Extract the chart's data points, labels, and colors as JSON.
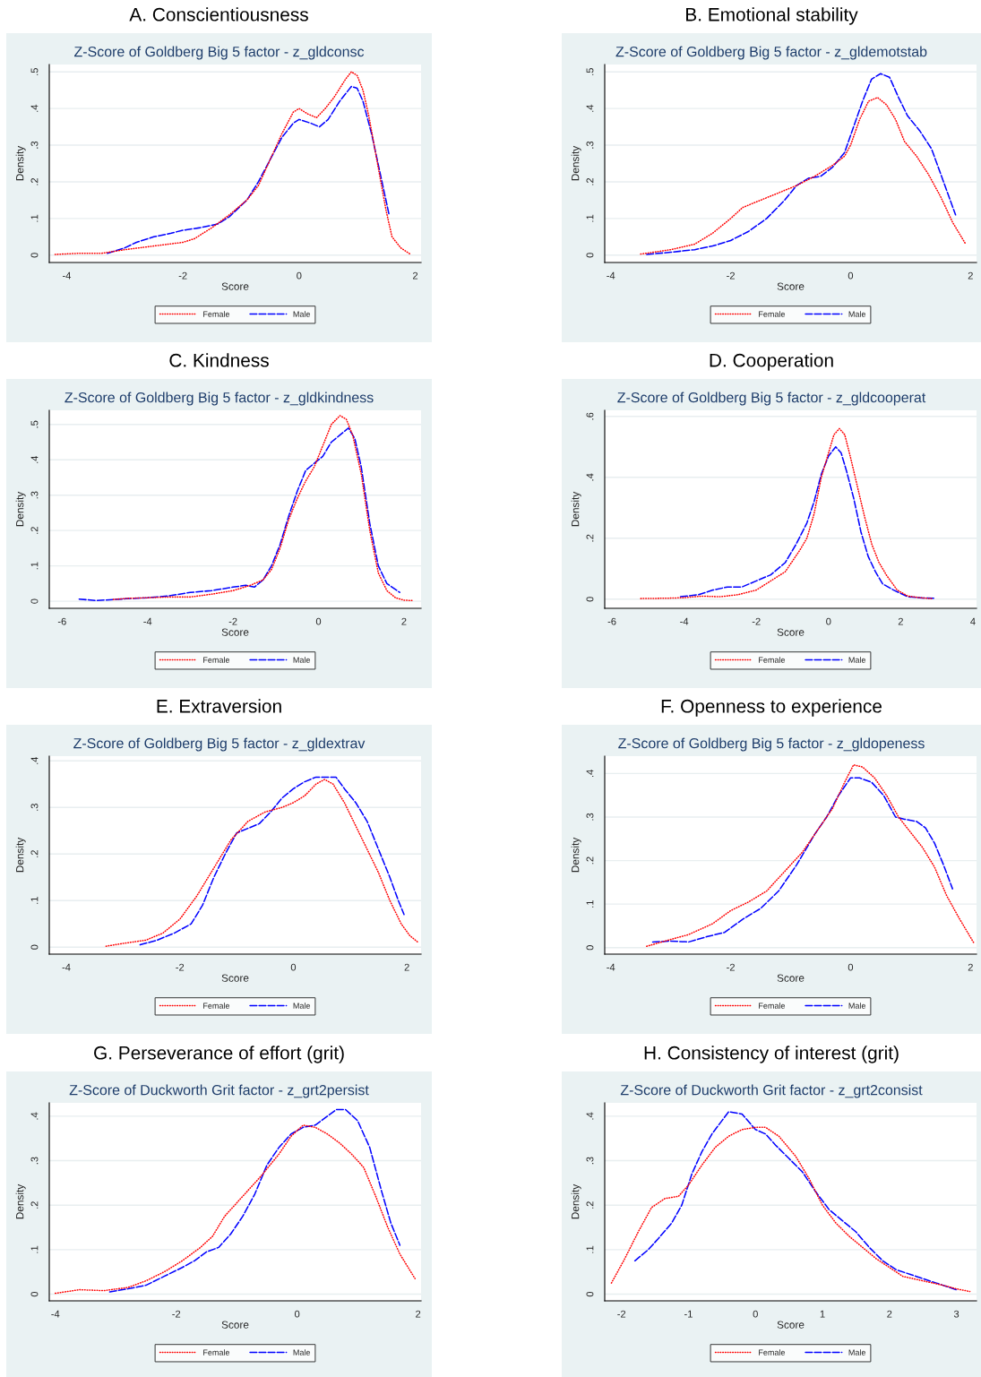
{
  "chart_data": [
    {
      "type": "line",
      "title": "A. Conscientiousness",
      "subtitle": "Z-Score of Goldberg Big 5 factor - z_gldconsc",
      "xlabel": "Score",
      "ylabel": "Density",
      "xlim": [
        -4.3,
        2.1
      ],
      "ylim": [
        -0.02,
        0.52
      ],
      "xticks": [
        -4,
        -2,
        0,
        2
      ],
      "yticks": [
        0,
        {
          "value": 0.1,
          "label": ".1"
        },
        {
          "value": 0.2,
          "label": ".2"
        },
        {
          "value": 0.3,
          "label": ".3"
        },
        {
          "value": 0.4,
          "label": ".4"
        },
        {
          "value": 0.5,
          "label": ".5"
        }
      ],
      "grid": "y",
      "legend": "bottom",
      "series": [
        {
          "name": "Female",
          "color": "#ff0000",
          "line_style": "dotted",
          "x": [
            -4.2,
            -3.8,
            -3.4,
            -3.0,
            -2.5,
            -2.0,
            -1.8,
            -1.5,
            -1.2,
            -0.9,
            -0.7,
            -0.5,
            -0.3,
            -0.1,
            0.0,
            0.15,
            0.3,
            0.45,
            0.6,
            0.8,
            0.9,
            1.0,
            1.1,
            1.2,
            1.35,
            1.5,
            1.6,
            1.75,
            1.92
          ],
          "values": [
            0.002,
            0.005,
            0.005,
            0.015,
            0.025,
            0.035,
            0.045,
            0.075,
            0.11,
            0.15,
            0.19,
            0.26,
            0.33,
            0.39,
            0.4,
            0.385,
            0.375,
            0.4,
            0.43,
            0.48,
            0.5,
            0.49,
            0.45,
            0.38,
            0.25,
            0.12,
            0.05,
            0.02,
            0.002
          ]
        },
        {
          "name": "Male",
          "color": "#0000ff",
          "line_style": "dashed",
          "x": [
            -3.3,
            -3.0,
            -2.8,
            -2.5,
            -2.2,
            -2.0,
            -1.7,
            -1.4,
            -1.2,
            -0.9,
            -0.7,
            -0.5,
            -0.3,
            -0.1,
            0.0,
            0.2,
            0.35,
            0.5,
            0.7,
            0.9,
            1.0,
            1.1,
            1.25,
            1.4,
            1.55
          ],
          "values": [
            0.005,
            0.02,
            0.035,
            0.05,
            0.06,
            0.068,
            0.075,
            0.085,
            0.105,
            0.15,
            0.2,
            0.26,
            0.32,
            0.36,
            0.37,
            0.36,
            0.35,
            0.37,
            0.42,
            0.46,
            0.455,
            0.42,
            0.33,
            0.22,
            0.11
          ]
        }
      ]
    },
    {
      "type": "line",
      "title": "B. Emotional stability",
      "subtitle": "Z-Score of Goldberg Big 5 factor - z_gldemotstab",
      "xlabel": "Score",
      "ylabel": "Density",
      "xlim": [
        -4.1,
        2.1
      ],
      "ylim": [
        -0.02,
        0.52
      ],
      "xticks": [
        -4,
        -2,
        0,
        2
      ],
      "yticks": [
        0,
        {
          "value": 0.1,
          "label": ".1"
        },
        {
          "value": 0.2,
          "label": ".2"
        },
        {
          "value": 0.3,
          "label": ".3"
        },
        {
          "value": 0.4,
          "label": ".4"
        },
        {
          "value": 0.5,
          "label": ".5"
        }
      ],
      "grid": "y",
      "legend": "bottom",
      "series": [
        {
          "name": "Female",
          "color": "#ff0000",
          "line_style": "dotted",
          "x": [
            -3.5,
            -3.0,
            -2.6,
            -2.3,
            -2.0,
            -1.8,
            -1.5,
            -1.2,
            -0.9,
            -0.6,
            -0.3,
            -0.1,
            0.0,
            0.15,
            0.3,
            0.45,
            0.6,
            0.75,
            0.9,
            1.1,
            1.3,
            1.5,
            1.7,
            1.92
          ],
          "values": [
            0.003,
            0.015,
            0.03,
            0.06,
            0.1,
            0.13,
            0.15,
            0.17,
            0.19,
            0.215,
            0.245,
            0.27,
            0.3,
            0.37,
            0.42,
            0.43,
            0.41,
            0.37,
            0.31,
            0.27,
            0.22,
            0.16,
            0.09,
            0.03
          ]
        },
        {
          "name": "Male",
          "color": "#0000ff",
          "line_style": "dashed",
          "x": [
            -3.4,
            -3.0,
            -2.6,
            -2.3,
            -2.0,
            -1.7,
            -1.4,
            -1.1,
            -0.9,
            -0.7,
            -0.5,
            -0.3,
            -0.1,
            0.05,
            0.2,
            0.35,
            0.5,
            0.65,
            0.8,
            0.95,
            1.15,
            1.35,
            1.55,
            1.75
          ],
          "values": [
            0.002,
            0.008,
            0.015,
            0.025,
            0.04,
            0.065,
            0.1,
            0.15,
            0.19,
            0.21,
            0.215,
            0.24,
            0.28,
            0.35,
            0.42,
            0.48,
            0.495,
            0.485,
            0.43,
            0.38,
            0.34,
            0.29,
            0.2,
            0.11
          ]
        }
      ]
    },
    {
      "type": "line",
      "title": "C. Kindness",
      "subtitle": "Z-Score of Goldberg Big 5 factor - z_gldkindness",
      "xlabel": "Score",
      "ylabel": "Density",
      "xlim": [
        -6.3,
        2.4
      ],
      "ylim": [
        -0.02,
        0.54
      ],
      "xticks": [
        -6,
        -4,
        -2,
        0,
        2
      ],
      "yticks": [
        0,
        {
          "value": 0.1,
          "label": ".1"
        },
        {
          "value": 0.2,
          "label": ".2"
        },
        {
          "value": 0.3,
          "label": ".3"
        },
        {
          "value": 0.4,
          "label": ".4"
        },
        {
          "value": 0.5,
          "label": ".5"
        }
      ],
      "grid": "y",
      "legend": "bottom",
      "series": [
        {
          "name": "Female",
          "color": "#ff0000",
          "line_style": "dotted",
          "x": [
            -4.8,
            -4.5,
            -4.0,
            -3.5,
            -3.0,
            -2.5,
            -2.0,
            -1.6,
            -1.3,
            -1.1,
            -0.9,
            -0.7,
            -0.5,
            -0.3,
            -0.1,
            0.1,
            0.3,
            0.5,
            0.65,
            0.8,
            1.0,
            1.2,
            1.4,
            1.6,
            1.8,
            2.0,
            2.2
          ],
          "values": [
            0.005,
            0.008,
            0.01,
            0.012,
            0.012,
            0.02,
            0.03,
            0.045,
            0.06,
            0.09,
            0.15,
            0.23,
            0.29,
            0.34,
            0.38,
            0.44,
            0.5,
            0.525,
            0.515,
            0.47,
            0.36,
            0.2,
            0.08,
            0.03,
            0.01,
            0.003,
            0.002
          ]
        },
        {
          "name": "Male",
          "color": "#0000ff",
          "line_style": "dashed",
          "x": [
            -5.6,
            -5.2,
            -4.5,
            -4.0,
            -3.5,
            -3.0,
            -2.5,
            -2.0,
            -1.7,
            -1.5,
            -1.3,
            -1.1,
            -0.9,
            -0.7,
            -0.5,
            -0.3,
            -0.1,
            0.1,
            0.3,
            0.5,
            0.7,
            0.85,
            1.0,
            1.2,
            1.4,
            1.6,
            1.9
          ],
          "values": [
            0.006,
            0.002,
            0.007,
            0.01,
            0.015,
            0.025,
            0.03,
            0.04,
            0.045,
            0.04,
            0.06,
            0.1,
            0.16,
            0.24,
            0.31,
            0.37,
            0.39,
            0.41,
            0.45,
            0.47,
            0.49,
            0.46,
            0.38,
            0.22,
            0.1,
            0.05,
            0.025
          ]
        }
      ]
    },
    {
      "type": "line",
      "title": "D. Cooperation",
      "subtitle": "Z-Score of Goldberg Big 5 factor - z_gldcooperat",
      "xlabel": "Score",
      "ylabel": "Density",
      "xlim": [
        -6.2,
        4.1
      ],
      "ylim": [
        -0.03,
        0.62
      ],
      "xticks": [
        -6,
        -4,
        -2,
        0,
        2,
        4
      ],
      "yticks": [
        0,
        {
          "value": 0.2,
          "label": ".2"
        },
        {
          "value": 0.4,
          "label": ".4"
        },
        {
          "value": 0.6,
          "label": ".6"
        }
      ],
      "grid": "y",
      "legend": "bottom",
      "series": [
        {
          "name": "Female",
          "color": "#ff0000",
          "line_style": "dotted",
          "x": [
            -5.2,
            -4.5,
            -4.0,
            -3.5,
            -3.0,
            -2.5,
            -2.0,
            -1.6,
            -1.2,
            -0.8,
            -0.6,
            -0.4,
            -0.2,
            0.0,
            0.15,
            0.3,
            0.45,
            0.6,
            0.8,
            1.0,
            1.2,
            1.4,
            1.6,
            1.9,
            2.2,
            2.6,
            2.85
          ],
          "values": [
            0.002,
            0.003,
            0.005,
            0.01,
            0.008,
            0.015,
            0.03,
            0.06,
            0.09,
            0.16,
            0.2,
            0.28,
            0.4,
            0.48,
            0.54,
            0.56,
            0.54,
            0.47,
            0.37,
            0.27,
            0.18,
            0.12,
            0.08,
            0.03,
            0.01,
            0.004,
            0.002
          ]
        },
        {
          "name": "Male",
          "color": "#0000ff",
          "line_style": "dashed",
          "x": [
            -4.1,
            -3.6,
            -3.2,
            -2.8,
            -2.4,
            -2.0,
            -1.6,
            -1.2,
            -0.9,
            -0.6,
            -0.4,
            -0.2,
            0.0,
            0.2,
            0.35,
            0.5,
            0.7,
            0.9,
            1.1,
            1.3,
            1.5,
            1.8,
            2.2,
            2.6,
            2.95
          ],
          "values": [
            0.008,
            0.015,
            0.03,
            0.04,
            0.04,
            0.06,
            0.08,
            0.12,
            0.18,
            0.25,
            0.32,
            0.41,
            0.47,
            0.5,
            0.48,
            0.42,
            0.33,
            0.22,
            0.14,
            0.09,
            0.05,
            0.03,
            0.008,
            0.004,
            0.003
          ]
        }
      ]
    },
    {
      "type": "line",
      "title": "E. Extraversion",
      "subtitle": "Z-Score of Goldberg Big 5 factor - z_gldextrav",
      "xlabel": "Score",
      "ylabel": "Density",
      "xlim": [
        -4.3,
        2.25
      ],
      "ylim": [
        -0.015,
        0.41
      ],
      "xticks": [
        -4,
        -2,
        0,
        2
      ],
      "yticks": [
        0,
        {
          "value": 0.1,
          "label": ".1"
        },
        {
          "value": 0.2,
          "label": ".2"
        },
        {
          "value": 0.3,
          "label": ".3"
        },
        {
          "value": 0.4,
          "label": ".4"
        }
      ],
      "grid": "y",
      "legend": "bottom",
      "series": [
        {
          "name": "Female",
          "color": "#ff0000",
          "line_style": "dotted",
          "x": [
            -3.3,
            -3.0,
            -2.6,
            -2.3,
            -2.0,
            -1.7,
            -1.4,
            -1.1,
            -0.8,
            -0.5,
            -0.2,
            0.0,
            0.2,
            0.4,
            0.55,
            0.7,
            0.9,
            1.1,
            1.3,
            1.5,
            1.7,
            1.9,
            2.05,
            2.2
          ],
          "values": [
            0.002,
            0.008,
            0.015,
            0.03,
            0.06,
            0.11,
            0.17,
            0.23,
            0.27,
            0.29,
            0.3,
            0.31,
            0.325,
            0.35,
            0.36,
            0.35,
            0.31,
            0.26,
            0.21,
            0.16,
            0.1,
            0.05,
            0.025,
            0.01
          ]
        },
        {
          "name": "Male",
          "color": "#0000ff",
          "line_style": "dashed",
          "x": [
            -2.7,
            -2.4,
            -2.1,
            -1.8,
            -1.6,
            -1.4,
            -1.2,
            -1.0,
            -0.8,
            -0.6,
            -0.4,
            -0.2,
            0.0,
            0.2,
            0.4,
            0.6,
            0.75,
            0.9,
            1.1,
            1.3,
            1.5,
            1.7,
            1.85,
            1.95
          ],
          "values": [
            0.005,
            0.015,
            0.03,
            0.05,
            0.09,
            0.15,
            0.2,
            0.245,
            0.255,
            0.265,
            0.29,
            0.32,
            0.34,
            0.355,
            0.365,
            0.365,
            0.365,
            0.34,
            0.31,
            0.27,
            0.21,
            0.15,
            0.1,
            0.07
          ]
        }
      ]
    },
    {
      "type": "line",
      "title": "F. Openness to experience",
      "subtitle": "Z-Score of Goldberg Big 5 factor - z_gldopeness",
      "xlabel": "Score",
      "ylabel": "Density",
      "xlim": [
        -4.1,
        2.1
      ],
      "ylim": [
        -0.015,
        0.44
      ],
      "xticks": [
        -4,
        -2,
        0,
        2
      ],
      "yticks": [
        0,
        {
          "value": 0.1,
          "label": ".1"
        },
        {
          "value": 0.2,
          "label": ".2"
        },
        {
          "value": 0.3,
          "label": ".3"
        },
        {
          "value": 0.4,
          "label": ".4"
        }
      ],
      "grid": "y",
      "legend": "bottom",
      "series": [
        {
          "name": "Female",
          "color": "#ff0000",
          "line_style": "dotted",
          "x": [
            -3.4,
            -3.1,
            -2.7,
            -2.3,
            -2.0,
            -1.7,
            -1.4,
            -1.1,
            -0.8,
            -0.5,
            -0.3,
            -0.1,
            0.05,
            0.2,
            0.4,
            0.6,
            0.8,
            1.0,
            1.2,
            1.4,
            1.6,
            1.8,
            2.05
          ],
          "values": [
            0.003,
            0.015,
            0.03,
            0.055,
            0.085,
            0.105,
            0.13,
            0.175,
            0.22,
            0.28,
            0.32,
            0.38,
            0.42,
            0.415,
            0.39,
            0.35,
            0.3,
            0.265,
            0.23,
            0.185,
            0.12,
            0.07,
            0.012
          ]
        },
        {
          "name": "Male",
          "color": "#0000ff",
          "line_style": "dashed",
          "x": [
            -3.3,
            -3.0,
            -2.7,
            -2.4,
            -2.1,
            -1.8,
            -1.5,
            -1.2,
            -0.9,
            -0.6,
            -0.4,
            -0.2,
            0.0,
            0.15,
            0.35,
            0.55,
            0.75,
            0.9,
            1.1,
            1.25,
            1.4,
            1.55,
            1.7
          ],
          "values": [
            0.013,
            0.015,
            0.013,
            0.025,
            0.035,
            0.065,
            0.09,
            0.13,
            0.19,
            0.26,
            0.3,
            0.35,
            0.39,
            0.39,
            0.38,
            0.35,
            0.3,
            0.295,
            0.29,
            0.275,
            0.24,
            0.19,
            0.135
          ]
        }
      ]
    },
    {
      "type": "line",
      "title": "G. Perseverance of effort (grit)",
      "subtitle": "Z-Score of Duckworth Grit factor - z_grt2persist",
      "xlabel": "Score",
      "ylabel": "Density",
      "xlim": [
        -4.1,
        2.05
      ],
      "ylim": [
        -0.015,
        0.43
      ],
      "xticks": [
        -4,
        -2,
        0,
        2
      ],
      "yticks": [
        0,
        {
          "value": 0.1,
          "label": ".1"
        },
        {
          "value": 0.2,
          "label": ".2"
        },
        {
          "value": 0.3,
          "label": ".3"
        },
        {
          "value": 0.4,
          "label": ".4"
        }
      ],
      "grid": "y",
      "legend": "bottom",
      "series": [
        {
          "name": "Female",
          "color": "#ff0000",
          "line_style": "dotted",
          "x": [
            -4.0,
            -3.6,
            -3.2,
            -2.8,
            -2.5,
            -2.2,
            -1.9,
            -1.6,
            -1.4,
            -1.2,
            -0.9,
            -0.6,
            -0.3,
            -0.1,
            0.1,
            0.3,
            0.5,
            0.7,
            0.9,
            1.1,
            1.3,
            1.5,
            1.7,
            1.95
          ],
          "values": [
            0.002,
            0.01,
            0.008,
            0.015,
            0.03,
            0.05,
            0.075,
            0.105,
            0.13,
            0.175,
            0.22,
            0.265,
            0.315,
            0.355,
            0.38,
            0.375,
            0.36,
            0.34,
            0.315,
            0.285,
            0.22,
            0.15,
            0.09,
            0.035
          ]
        },
        {
          "name": "Male",
          "color": "#0000ff",
          "line_style": "dashed",
          "x": [
            -3.1,
            -2.8,
            -2.5,
            -2.2,
            -1.9,
            -1.7,
            -1.5,
            -1.3,
            -1.1,
            -0.9,
            -0.7,
            -0.5,
            -0.3,
            -0.1,
            0.1,
            0.3,
            0.5,
            0.65,
            0.8,
            1.0,
            1.2,
            1.4,
            1.55,
            1.7
          ],
          "values": [
            0.005,
            0.012,
            0.02,
            0.04,
            0.06,
            0.075,
            0.095,
            0.105,
            0.135,
            0.175,
            0.225,
            0.29,
            0.33,
            0.36,
            0.375,
            0.38,
            0.4,
            0.415,
            0.415,
            0.39,
            0.33,
            0.23,
            0.16,
            0.11
          ]
        }
      ]
    },
    {
      "type": "line",
      "title": "H. Consistency of interest (grit)",
      "subtitle": "Z-Score of Duckworth Grit factor - z_grt2consist",
      "xlabel": "Score",
      "ylabel": "Density",
      "xlim": [
        -2.25,
        3.3
      ],
      "ylim": [
        -0.015,
        0.43
      ],
      "xticks": [
        -2,
        -1,
        0,
        1,
        2,
        3
      ],
      "yticks": [
        0,
        {
          "value": 0.1,
          "label": ".1"
        },
        {
          "value": 0.2,
          "label": ".2"
        },
        {
          "value": 0.3,
          "label": ".3"
        },
        {
          "value": 0.4,
          "label": ".4"
        }
      ],
      "grid": "y",
      "legend": "bottom",
      "series": [
        {
          "name": "Female",
          "color": "#ff0000",
          "line_style": "dotted",
          "x": [
            -2.15,
            -1.95,
            -1.75,
            -1.55,
            -1.35,
            -1.15,
            -1.0,
            -0.8,
            -0.6,
            -0.4,
            -0.2,
            0.0,
            0.15,
            0.35,
            0.6,
            0.8,
            1.0,
            1.2,
            1.4,
            1.6,
            1.8,
            2.0,
            2.2,
            2.5,
            2.8,
            3.0,
            3.2
          ],
          "values": [
            0.025,
            0.08,
            0.14,
            0.195,
            0.215,
            0.22,
            0.245,
            0.29,
            0.33,
            0.355,
            0.37,
            0.375,
            0.375,
            0.355,
            0.31,
            0.26,
            0.2,
            0.16,
            0.13,
            0.105,
            0.08,
            0.06,
            0.04,
            0.03,
            0.02,
            0.012,
            0.006
          ]
        },
        {
          "name": "Male",
          "color": "#0000ff",
          "line_style": "dashed",
          "x": [
            -1.8,
            -1.6,
            -1.45,
            -1.25,
            -1.1,
            -0.95,
            -0.8,
            -0.65,
            -0.5,
            -0.4,
            -0.2,
            0.0,
            0.15,
            0.3,
            0.5,
            0.7,
            0.9,
            1.1,
            1.3,
            1.5,
            1.7,
            1.9,
            2.1,
            2.4,
            2.7,
            3.0
          ],
          "values": [
            0.075,
            0.1,
            0.125,
            0.16,
            0.2,
            0.27,
            0.32,
            0.36,
            0.39,
            0.41,
            0.405,
            0.37,
            0.36,
            0.335,
            0.305,
            0.275,
            0.23,
            0.19,
            0.165,
            0.14,
            0.105,
            0.075,
            0.055,
            0.04,
            0.025,
            0.01
          ]
        }
      ]
    }
  ]
}
